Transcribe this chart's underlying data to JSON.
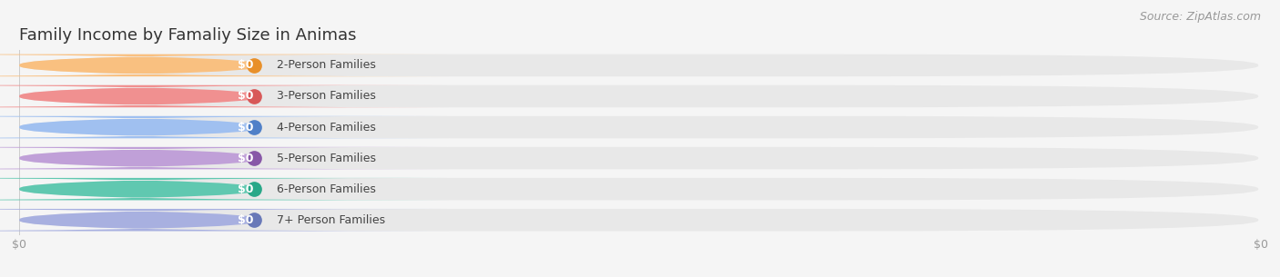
{
  "title": "Family Income by Famaliy Size in Animas",
  "source": "Source: ZipAtlas.com",
  "categories": [
    "2-Person Families",
    "3-Person Families",
    "4-Person Families",
    "5-Person Families",
    "6-Person Families",
    "7+ Person Families"
  ],
  "values": [
    0,
    0,
    0,
    0,
    0,
    0
  ],
  "bar_colors": [
    "#F9C080",
    "#F09090",
    "#A0C0F0",
    "#C0A0D8",
    "#60C8B0",
    "#A8B0E0"
  ],
  "dot_colors": [
    "#E8902A",
    "#D85858",
    "#5080C8",
    "#8858A8",
    "#28A888",
    "#6878B8"
  ],
  "bg_color": "#f5f5f5",
  "bar_bg_color": "#e8e8e8",
  "title_fontsize": 13,
  "source_fontsize": 9,
  "label_fontsize": 9,
  "value_fontsize": 9,
  "xtick_positions": [
    0.0,
    1.0
  ],
  "xtick_labels": [
    "$0",
    "$0"
  ]
}
